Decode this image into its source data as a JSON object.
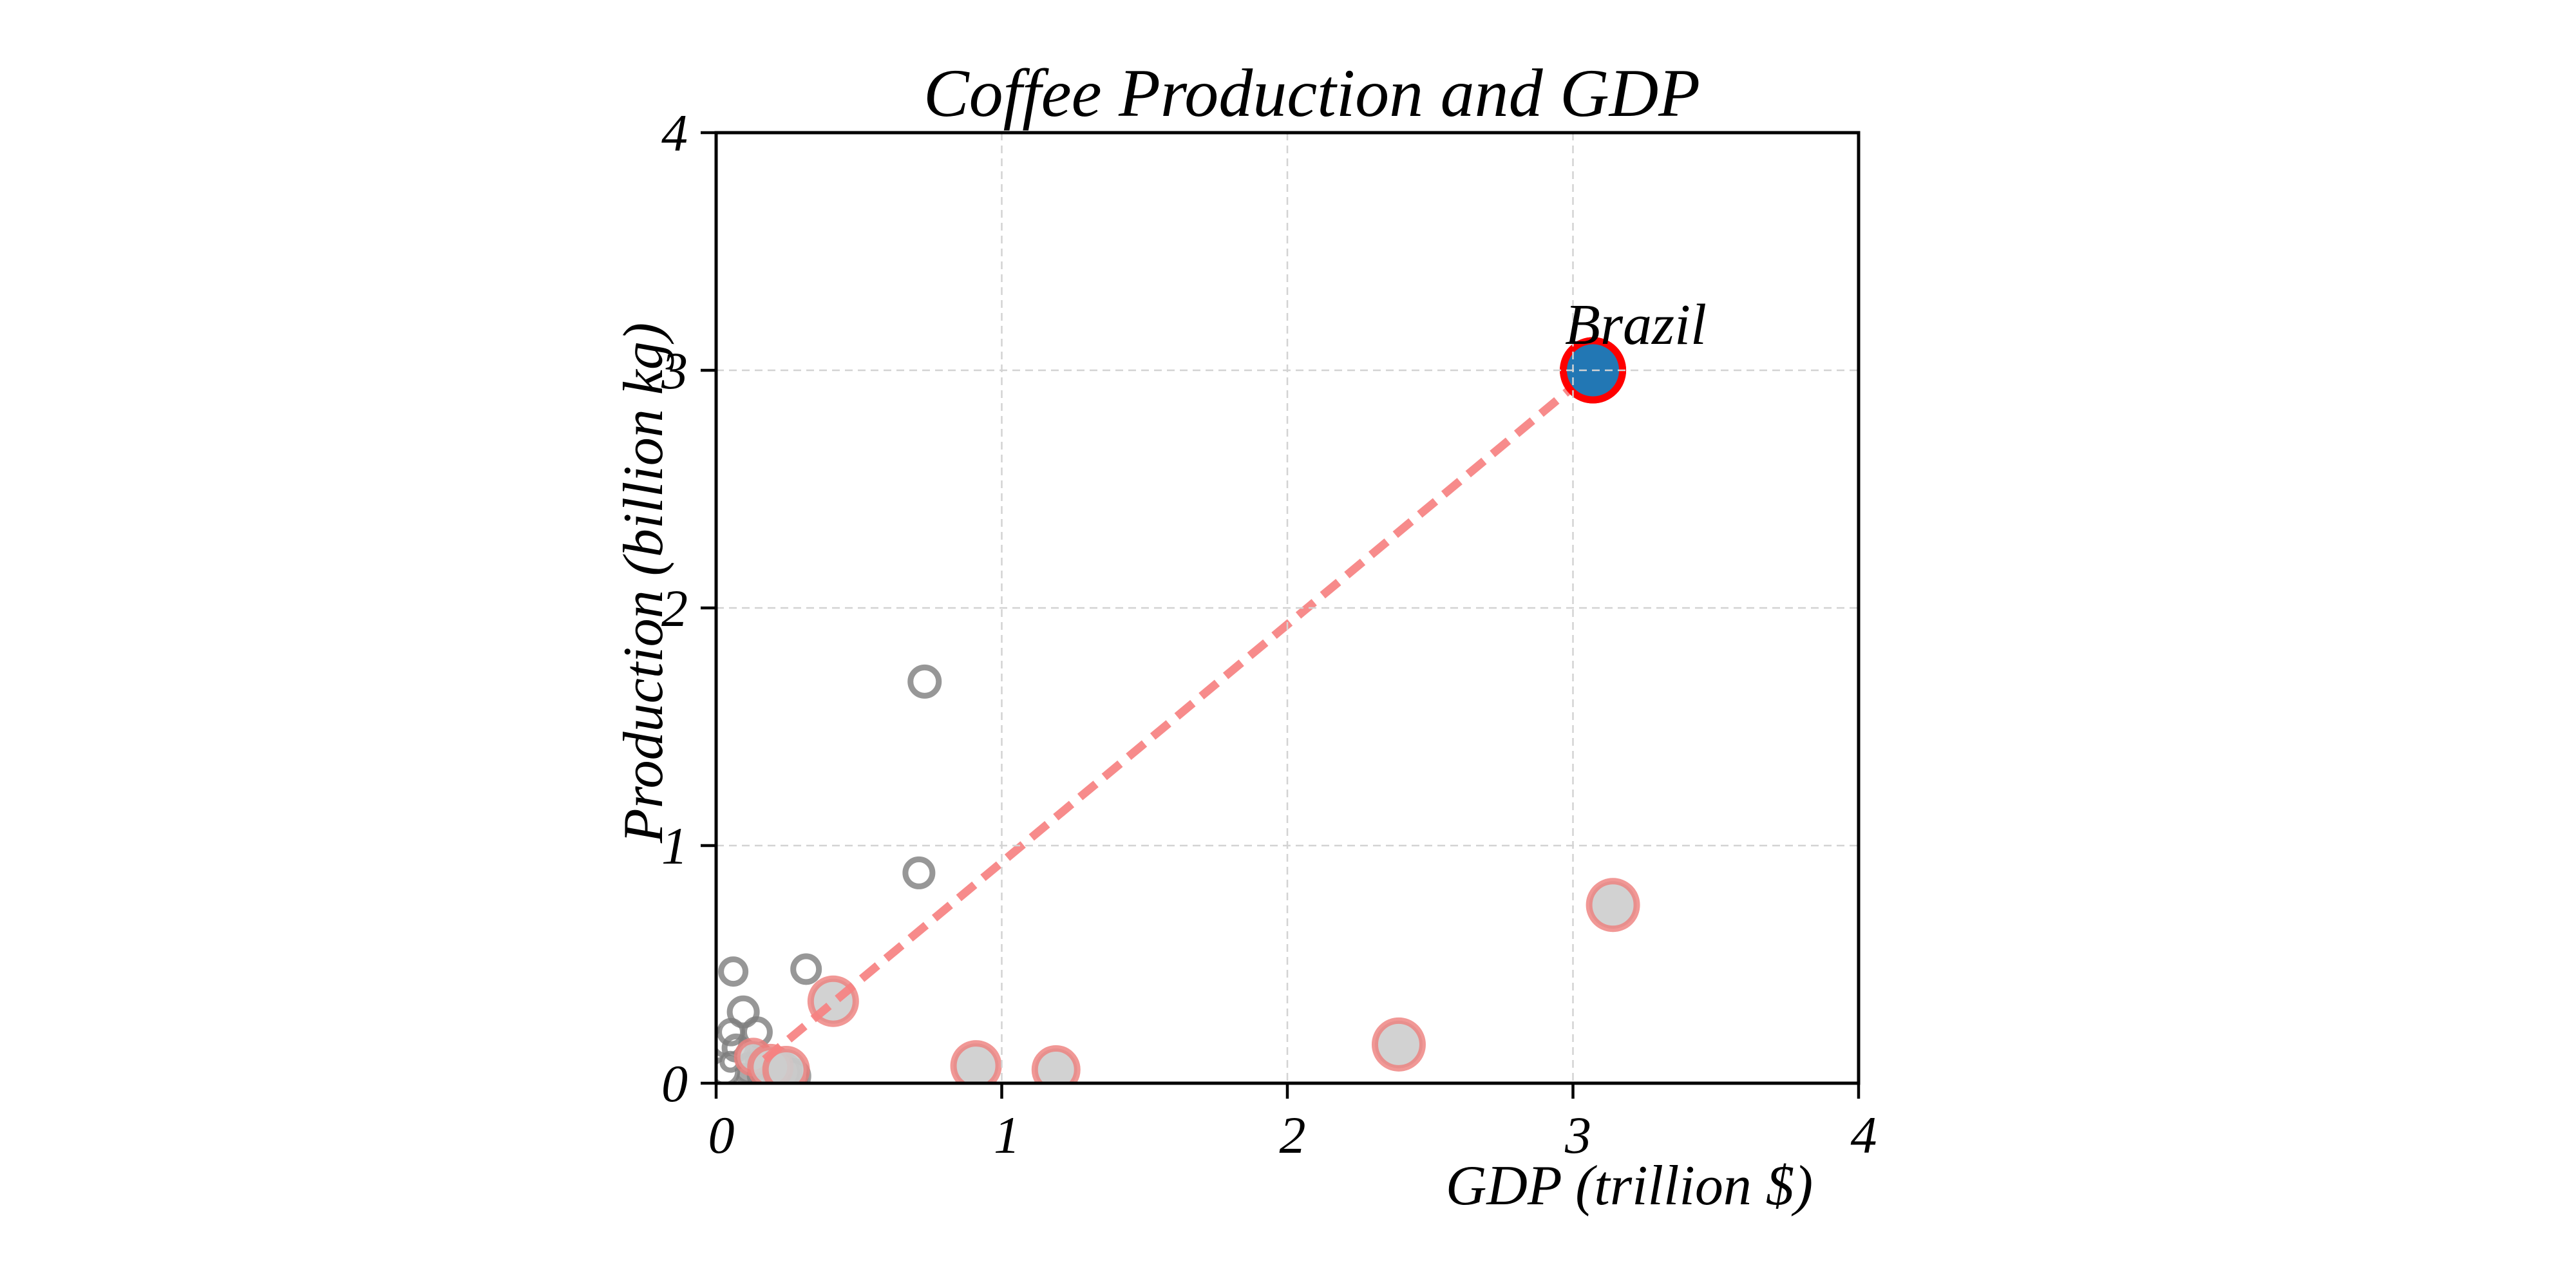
{
  "chart_data": {
    "type": "scatter",
    "title": "Coffee Production and GDP",
    "xlabel": "GDP (trillion $)",
    "ylabel": "Production (billion kg)",
    "xlim": [
      0,
      4
    ],
    "ylim": [
      0,
      4
    ],
    "xticks": [
      "0",
      "1",
      "2",
      "3",
      "4"
    ],
    "yticks": [
      "0",
      "1",
      "2",
      "3",
      "4"
    ],
    "xtick_values": [
      0,
      1,
      2,
      3,
      4
    ],
    "ytick_values": [
      0,
      1,
      2,
      3,
      4
    ],
    "grid": {
      "visible": true,
      "lines_at": [
        1,
        2,
        3
      ],
      "style": "dashed",
      "color": "#d3d3d3",
      "above_points": true
    },
    "annotation": {
      "text": "Brazil",
      "x": 3.2,
      "y": 3.25
    },
    "trend_line": {
      "x1": 0.17,
      "y1": 0.1,
      "x2": 3.07,
      "y2": 3.0,
      "color": "#f78282",
      "style": "dashed",
      "width": 13
    },
    "series": [
      {
        "name": "gray-filled-bubbles",
        "fill": "rgba(140,140,140,0.5)",
        "edge": "rgba(110,110,110,0.65)",
        "edge_width": 8,
        "points": [
          [
            0.115,
            0.06,
            22
          ],
          [
            0.175,
            0.035,
            26
          ],
          [
            0.23,
            0.048,
            28
          ],
          [
            0.095,
            0.025,
            18
          ],
          [
            0.155,
            0.1,
            20
          ],
          [
            0.27,
            0.03,
            24
          ]
        ]
      },
      {
        "name": "white-filled-bubbles",
        "fill": "#ffffff",
        "edge": "rgba(125,125,125,0.8)",
        "edge_width": 8,
        "points": [
          [
            0.038,
            0.175,
            22
          ],
          [
            0.052,
            0.215,
            18
          ],
          [
            0.03,
            0.048,
            20
          ],
          [
            0.05,
            0.09,
            13
          ]
        ]
      },
      {
        "name": "gray-open-bubbles",
        "fill": "none",
        "edge": "rgba(125,125,125,0.8)",
        "edge_width": 9,
        "points": [
          [
            0.73,
            1.69,
            22
          ],
          [
            0.71,
            0.885,
            21
          ],
          [
            0.06,
            0.47,
            19
          ],
          [
            0.315,
            0.48,
            20
          ],
          [
            0.095,
            0.3,
            21
          ],
          [
            0.143,
            0.215,
            20
          ],
          [
            0.07,
            0.148,
            18
          ]
        ]
      },
      {
        "name": "red-edged-bubbles",
        "fill": "rgba(205,205,205,0.9)",
        "edge": "rgba(238,126,124,0.8)",
        "edge_width": 10,
        "points": [
          [
            0.41,
            0.345,
            35
          ],
          [
            0.13,
            0.11,
            25
          ],
          [
            0.19,
            0.068,
            31
          ],
          [
            0.245,
            0.057,
            32
          ],
          [
            0.91,
            0.073,
            35
          ],
          [
            1.19,
            0.057,
            33
          ],
          [
            2.39,
            0.163,
            37
          ],
          [
            3.14,
            0.75,
            37
          ]
        ]
      },
      {
        "name": "highlighted-brazil",
        "fill": "#2277b4",
        "edge": "#ff0000",
        "edge_width": 11,
        "points": [
          [
            3.07,
            3.0,
            46
          ]
        ]
      }
    ],
    "colors": {
      "spine": "#000000",
      "tick": "#000000",
      "grid": "#d3d3d3",
      "trend": "#f78282",
      "brazil_fill": "#2277b4",
      "brazil_edge": "#ff0000"
    }
  }
}
